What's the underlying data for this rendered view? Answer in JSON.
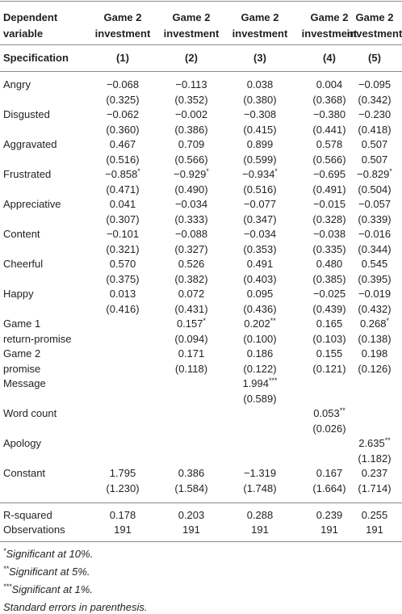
{
  "table": {
    "header": {
      "label": [
        "Dependent",
        "variable"
      ],
      "columns": [
        [
          "Game 2",
          "investment"
        ],
        [
          "Game 2",
          "investment"
        ],
        [
          "Game 2",
          "investment"
        ],
        [
          "Game 2",
          "investment"
        ],
        [
          "Game 2",
          "investment"
        ]
      ]
    },
    "specification": {
      "label": "Specification",
      "columns": [
        "(1)",
        "(2)",
        "(3)",
        "(4)",
        "(5)"
      ]
    },
    "rows": [
      {
        "label": [
          "Angry"
        ],
        "cells": [
          {
            "coef": "−0.068",
            "se": "(0.325)"
          },
          {
            "coef": "−0.113",
            "se": "(0.352)"
          },
          {
            "coef": "0.038",
            "se": "(0.380)"
          },
          {
            "coef": "0.004",
            "se": "(0.368)"
          },
          {
            "coef": "−0.095",
            "se": "(0.342)"
          }
        ]
      },
      {
        "label": [
          "Disgusted"
        ],
        "cells": [
          {
            "coef": "−0.062",
            "se": "(0.360)"
          },
          {
            "coef": "−0.002",
            "se": "(0.386)"
          },
          {
            "coef": "−0.308",
            "se": "(0.415)"
          },
          {
            "coef": "−0.380",
            "se": "(0.441)"
          },
          {
            "coef": "−0.230",
            "se": "(0.418)"
          }
        ]
      },
      {
        "label": [
          "Aggravated"
        ],
        "cells": [
          {
            "coef": "0.467",
            "se": "(0.516)"
          },
          {
            "coef": "0.709",
            "se": "(0.566)"
          },
          {
            "coef": "0.899",
            "se": "(0.599)"
          },
          {
            "coef": "0.578",
            "se": "(0.566)"
          },
          {
            "coef": "0.507",
            "se": "0.507"
          }
        ]
      },
      {
        "label": [
          "Frustrated"
        ],
        "cells": [
          {
            "coef": "−0.858",
            "stars": "*",
            "se": "(0.471)"
          },
          {
            "coef": "−0.929",
            "stars": "*",
            "se": "(0.490)"
          },
          {
            "coef": "−0.934",
            "stars": "*",
            "se": "(0.516)"
          },
          {
            "coef": "−0.695",
            "se": "(0.491)"
          },
          {
            "coef": "−0.829",
            "stars": "*",
            "se": "(0.504)"
          }
        ]
      },
      {
        "label": [
          "Appreciative"
        ],
        "cells": [
          {
            "coef": "0.041",
            "se": "(0.307)"
          },
          {
            "coef": "−0.034",
            "se": "(0.333)"
          },
          {
            "coef": "−0.077",
            "se": "(0.347)"
          },
          {
            "coef": "−0.015",
            "se": "(0.328)"
          },
          {
            "coef": "−0.057",
            "se": "(0.339)"
          }
        ]
      },
      {
        "label": [
          "Content"
        ],
        "cells": [
          {
            "coef": "−0.101",
            "se": "(0.321)"
          },
          {
            "coef": "−0.088",
            "se": "(0.327)"
          },
          {
            "coef": "−0.034",
            "se": "(0.353)"
          },
          {
            "coef": "−0.038",
            "se": "(0.335)"
          },
          {
            "coef": "−0.016",
            "se": "(0.344)"
          }
        ]
      },
      {
        "label": [
          "Cheerful"
        ],
        "cells": [
          {
            "coef": "0.570",
            "se": "(0.375)"
          },
          {
            "coef": "0.526",
            "se": "(0.382)"
          },
          {
            "coef": "0.491",
            "se": "(0.403)"
          },
          {
            "coef": "0.480",
            "se": "(0.385)"
          },
          {
            "coef": "0.545",
            "se": "(0.395)"
          }
        ]
      },
      {
        "label": [
          "Happy"
        ],
        "cells": [
          {
            "coef": "0.013",
            "se": "(0.416)"
          },
          {
            "coef": "0.072",
            "se": "(0.431)"
          },
          {
            "coef": "0.095",
            "se": "(0.436)"
          },
          {
            "coef": "−0.025",
            "se": "(0.439)"
          },
          {
            "coef": "−0.019",
            "se": "(0.432)"
          }
        ]
      },
      {
        "label": [
          "Game 1",
          "return-promise"
        ],
        "cells": [
          null,
          {
            "coef": "0.157",
            "stars": "*",
            "se": "(0.094)"
          },
          {
            "coef": "0.202",
            "stars": "**",
            "se": "(0.100)"
          },
          {
            "coef": "0.165",
            "se": "(0.103)"
          },
          {
            "coef": "0.268",
            "stars": "*",
            "se": "(0.138)"
          }
        ]
      },
      {
        "label": [
          "Game 2",
          "promise"
        ],
        "cells": [
          null,
          {
            "coef": "0.171",
            "se": "(0.118)"
          },
          {
            "coef": "0.186",
            "se": "(0.122)"
          },
          {
            "coef": "0.155",
            "se": "(0.121)"
          },
          {
            "coef": "0.198",
            "se": "(0.126)"
          }
        ]
      },
      {
        "label": [
          "Message"
        ],
        "cells": [
          null,
          null,
          {
            "coef": "1.994",
            "stars": "***",
            "se": "(0.589)"
          },
          null,
          null
        ]
      },
      {
        "label": [
          "Word count"
        ],
        "cells": [
          null,
          null,
          null,
          {
            "coef": "0.053",
            "stars": "**",
            "se": "(0.026)"
          },
          null
        ]
      },
      {
        "label": [
          "Apology"
        ],
        "cells": [
          null,
          null,
          null,
          null,
          {
            "coef": "2.635",
            "stars": "**",
            "se": "(1.182)"
          }
        ]
      },
      {
        "label": [
          "Constant"
        ],
        "cells": [
          {
            "coef": "1.795",
            "se": "(1.230)"
          },
          {
            "coef": "0.386",
            "se": "(1.584)"
          },
          {
            "coef": "−1.319",
            "se": "(1.748)"
          },
          {
            "coef": "0.167",
            "se": "(1.664)"
          },
          {
            "coef": "0.237",
            "se": "(1.714)"
          }
        ]
      }
    ],
    "stats": [
      {
        "label": "R-squared",
        "values": [
          "0.178",
          "0.203",
          "0.288",
          "0.239",
          "0.255"
        ]
      },
      {
        "label": "Observations",
        "values": [
          "191",
          "191",
          "191",
          "191",
          "191"
        ]
      }
    ]
  },
  "footnotes": [
    {
      "mark": "*",
      "text": "Significant at 10%."
    },
    {
      "mark": "**",
      "text": "Significant at 5%."
    },
    {
      "mark": "***",
      "text": "Significant at 1%."
    },
    {
      "text": "Standard errors in parenthesis."
    }
  ]
}
